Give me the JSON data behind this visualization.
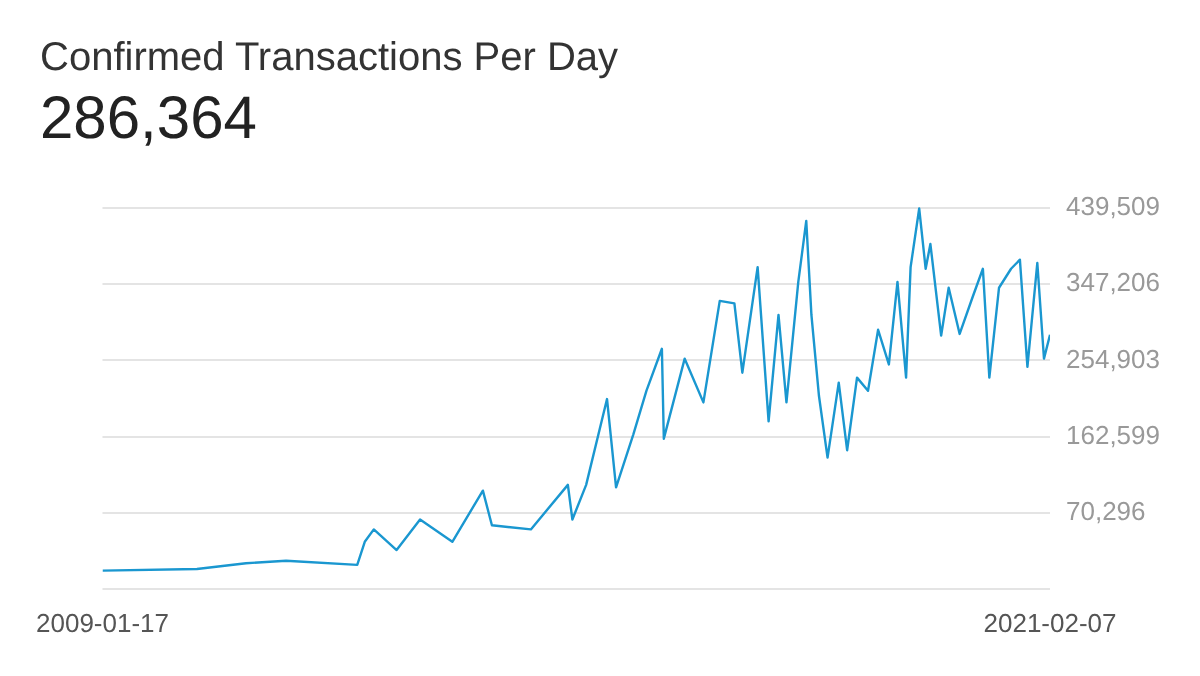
{
  "chart_data": {
    "type": "line",
    "title": "Confirmed Transactions Per Day",
    "subtitle": "286,364",
    "x": [
      "2009-01-17",
      "2010-04-01",
      "2010-11-15",
      "2011-05-20",
      "2012-04-15",
      "2012-05-20",
      "2012-07-01",
      "2012-10-15",
      "2013-02-01",
      "2013-07-01",
      "2013-11-20",
      "2014-01-01",
      "2014-07-01",
      "2014-12-20",
      "2015-01-10",
      "2015-03-15",
      "2015-06-20",
      "2015-08-01",
      "2015-10-20",
      "2015-12-20",
      "2016-03-01",
      "2016-03-10",
      "2016-06-15",
      "2016-09-10",
      "2016-11-25",
      "2017-02-01",
      "2017-03-10",
      "2017-05-20",
      "2017-07-10",
      "2017-08-25",
      "2017-10-01",
      "2017-11-25",
      "2018-01-01",
      "2018-01-25",
      "2018-03-01",
      "2018-04-10",
      "2018-06-01",
      "2018-07-10",
      "2018-08-25",
      "2018-10-15",
      "2018-12-01",
      "2019-01-20",
      "2019-03-01",
      "2019-04-10",
      "2019-05-01",
      "2019-06-10",
      "2019-07-10",
      "2019-08-01",
      "2019-09-20",
      "2019-10-25",
      "2019-12-15",
      "2020-02-15",
      "2020-04-01",
      "2020-05-01",
      "2020-06-15",
      "2020-08-10",
      "2020-09-20",
      "2020-10-25",
      "2020-12-10",
      "2021-01-10",
      "2021-02-07"
    ],
    "values": [
      0,
      2000,
      9000,
      12000,
      7000,
      35000,
      50000,
      25000,
      62000,
      35000,
      97000,
      55000,
      50000,
      104000,
      62000,
      104000,
      208000,
      101000,
      165000,
      218000,
      269000,
      160000,
      257000,
      204000,
      327000,
      324000,
      240000,
      368000,
      181000,
      310000,
      204000,
      350000,
      424000,
      310000,
      212000,
      137000,
      228000,
      146000,
      234000,
      218000,
      292000,
      250000,
      350000,
      234000,
      368000,
      439000,
      366000,
      396000,
      285000,
      343000,
      287000,
      333000,
      366000,
      234000,
      343000,
      366000,
      377000,
      247000,
      373000,
      257000,
      286000
    ],
    "color": "#1a97d0",
    "xlim": [
      "2009-01-17",
      "2021-02-07"
    ],
    "xticks": [
      {
        "value": "2009-01-17",
        "label": "2009-01-17"
      },
      {
        "value": "2021-02-07",
        "label": "2021-02-07"
      }
    ],
    "ylim": [
      -22007,
      445000
    ],
    "yticks": [
      {
        "value": -22007,
        "label": null
      },
      {
        "value": 70296,
        "label": "70,296"
      },
      {
        "value": 162599,
        "label": "162,599"
      },
      {
        "value": 254903,
        "label": "254,903"
      },
      {
        "value": 347206,
        "label": "347,206"
      },
      {
        "value": 439509,
        "label": "439,509"
      }
    ],
    "grid": "y",
    "legend": false,
    "marker": "none",
    "line_style": "solid"
  }
}
